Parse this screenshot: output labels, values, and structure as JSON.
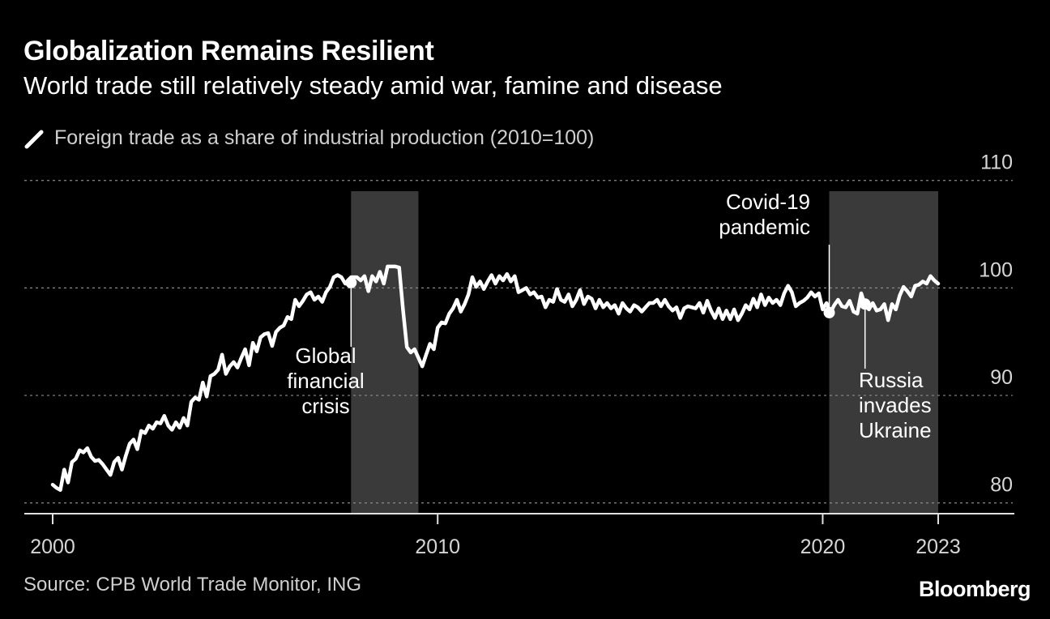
{
  "title": "Globalization Remains Resilient",
  "subtitle": "World trade still relatively steady amid war, famine and disease",
  "source": "Source: CPB World Trade Monitor, ING",
  "brand": "Bloomberg",
  "colors": {
    "background": "#000000",
    "line": "#ffffff",
    "shade": "#3a3a3a",
    "grid": "#8a8a8a",
    "text": "#ffffff"
  },
  "chart_data": {
    "type": "line",
    "legend": [
      {
        "label": "Foreign trade as a share of industrial production (2010=100)"
      }
    ],
    "x_ticks": [
      "2000",
      "2010",
      "2020",
      "2023"
    ],
    "y_ticks": [
      "110",
      "100",
      "90",
      "80"
    ],
    "xlim": [
      2000,
      2023.9
    ],
    "ylim": [
      79,
      109
    ],
    "grid": true,
    "shaded_periods": [
      {
        "start": 2007.75,
        "end": 2009.5
      },
      {
        "start": 2020.17,
        "end": 2023.0
      }
    ],
    "annotations": [
      {
        "lines": [
          "Global",
          "financial",
          "crisis"
        ],
        "x": 2007.75,
        "y": 100.5
      },
      {
        "lines": [
          "Covid-19",
          "pandemic"
        ],
        "x": 2020.17,
        "y": 97.7
      },
      {
        "lines": [
          "Russia",
          "invades",
          "Ukraine"
        ],
        "x": 2021.1,
        "y": 98.5
      }
    ],
    "series": [
      {
        "values": [
          [
            2000.0,
            81.7
          ],
          [
            2000.1,
            81.4
          ],
          [
            2000.2,
            81.2
          ],
          [
            2000.3,
            83.1
          ],
          [
            2000.4,
            81.9
          ],
          [
            2000.5,
            83.8
          ],
          [
            2000.6,
            84.1
          ],
          [
            2000.7,
            84.9
          ],
          [
            2000.8,
            84.7
          ],
          [
            2000.9,
            85.1
          ],
          [
            2001.0,
            84.3
          ],
          [
            2001.1,
            83.9
          ],
          [
            2001.2,
            84.0
          ],
          [
            2001.3,
            83.6
          ],
          [
            2001.4,
            83.1
          ],
          [
            2001.5,
            82.6
          ],
          [
            2001.6,
            83.8
          ],
          [
            2001.7,
            84.2
          ],
          [
            2001.8,
            83.1
          ],
          [
            2001.9,
            84.4
          ],
          [
            2002.0,
            85.5
          ],
          [
            2002.1,
            85.9
          ],
          [
            2002.2,
            85.0
          ],
          [
            2002.3,
            86.7
          ],
          [
            2002.4,
            86.5
          ],
          [
            2002.5,
            87.2
          ],
          [
            2002.6,
            86.9
          ],
          [
            2002.7,
            87.5
          ],
          [
            2002.8,
            87.4
          ],
          [
            2002.9,
            88.1
          ],
          [
            2003.0,
            87.2
          ],
          [
            2003.1,
            86.8
          ],
          [
            2003.2,
            87.5
          ],
          [
            2003.3,
            87.0
          ],
          [
            2003.4,
            87.9
          ],
          [
            2003.5,
            87.2
          ],
          [
            2003.6,
            89.4
          ],
          [
            2003.7,
            89.8
          ],
          [
            2003.8,
            89.6
          ],
          [
            2003.9,
            91.2
          ],
          [
            2004.0,
            89.9
          ],
          [
            2004.1,
            91.8
          ],
          [
            2004.2,
            92.0
          ],
          [
            2004.3,
            92.4
          ],
          [
            2004.4,
            93.8
          ],
          [
            2004.5,
            92.0
          ],
          [
            2004.6,
            92.7
          ],
          [
            2004.7,
            93.1
          ],
          [
            2004.8,
            92.6
          ],
          [
            2004.9,
            93.5
          ],
          [
            2005.0,
            94.3
          ],
          [
            2005.1,
            92.8
          ],
          [
            2005.2,
            94.9
          ],
          [
            2005.3,
            94.1
          ],
          [
            2005.4,
            95.4
          ],
          [
            2005.5,
            95.7
          ],
          [
            2005.6,
            95.8
          ],
          [
            2005.7,
            94.6
          ],
          [
            2005.8,
            95.9
          ],
          [
            2005.9,
            96.3
          ],
          [
            2006.0,
            96.5
          ],
          [
            2006.1,
            97.3
          ],
          [
            2006.2,
            97.1
          ],
          [
            2006.3,
            98.9
          ],
          [
            2006.4,
            98.3
          ],
          [
            2006.5,
            98.8
          ],
          [
            2006.6,
            99.4
          ],
          [
            2006.7,
            99.6
          ],
          [
            2006.8,
            98.9
          ],
          [
            2006.9,
            99.2
          ],
          [
            2007.0,
            98.7
          ],
          [
            2007.1,
            99.6
          ],
          [
            2007.2,
            100.1
          ],
          [
            2007.3,
            101.0
          ],
          [
            2007.4,
            101.2
          ],
          [
            2007.5,
            101.0
          ],
          [
            2007.6,
            100.4
          ],
          [
            2007.7,
            100.8
          ],
          [
            2007.75,
            101.0
          ],
          [
            2007.9,
            101.0
          ],
          [
            2008.0,
            100.7
          ],
          [
            2008.1,
            101.1
          ],
          [
            2008.2,
            99.7
          ],
          [
            2008.3,
            101.1
          ],
          [
            2008.4,
            100.6
          ],
          [
            2008.5,
            101.5
          ],
          [
            2008.6,
            100.4
          ],
          [
            2008.7,
            102.0
          ],
          [
            2008.9,
            102.0
          ],
          [
            2009.0,
            101.9
          ],
          [
            2009.1,
            98.0
          ],
          [
            2009.2,
            94.5
          ],
          [
            2009.3,
            94.0
          ],
          [
            2009.4,
            94.3
          ],
          [
            2009.6,
            92.7
          ],
          [
            2009.7,
            93.8
          ],
          [
            2009.8,
            94.8
          ],
          [
            2009.9,
            94.3
          ],
          [
            2010.0,
            96.3
          ],
          [
            2010.1,
            96.8
          ],
          [
            2010.2,
            96.7
          ],
          [
            2010.3,
            97.6
          ],
          [
            2010.4,
            98.1
          ],
          [
            2010.5,
            98.9
          ],
          [
            2010.6,
            97.8
          ],
          [
            2010.7,
            98.5
          ],
          [
            2010.8,
            99.4
          ],
          [
            2010.9,
            101.0
          ],
          [
            2011.0,
            100.1
          ],
          [
            2011.1,
            100.6
          ],
          [
            2011.2,
            99.9
          ],
          [
            2011.3,
            100.6
          ],
          [
            2011.4,
            101.2
          ],
          [
            2011.5,
            100.4
          ],
          [
            2011.6,
            101.1
          ],
          [
            2011.7,
            100.7
          ],
          [
            2011.8,
            101.3
          ],
          [
            2011.9,
            100.6
          ],
          [
            2012.0,
            101.1
          ],
          [
            2012.1,
            99.6
          ],
          [
            2012.2,
            99.8
          ],
          [
            2012.3,
            100.0
          ],
          [
            2012.4,
            99.4
          ],
          [
            2012.5,
            99.6
          ],
          [
            2012.6,
            99.1
          ],
          [
            2012.7,
            99.2
          ],
          [
            2012.8,
            98.2
          ],
          [
            2012.9,
            98.9
          ],
          [
            2013.0,
            98.7
          ],
          [
            2013.1,
            99.9
          ],
          [
            2013.2,
            98.9
          ],
          [
            2013.3,
            98.7
          ],
          [
            2013.4,
            99.4
          ],
          [
            2013.5,
            98.3
          ],
          [
            2013.6,
            98.9
          ],
          [
            2013.7,
            99.8
          ],
          [
            2013.8,
            98.5
          ],
          [
            2013.9,
            99.2
          ],
          [
            2014.0,
            99.0
          ],
          [
            2014.1,
            98.1
          ],
          [
            2014.2,
            98.9
          ],
          [
            2014.3,
            98.2
          ],
          [
            2014.4,
            98.6
          ],
          [
            2014.5,
            98.1
          ],
          [
            2014.6,
            98.4
          ],
          [
            2014.7,
            97.6
          ],
          [
            2014.8,
            98.6
          ],
          [
            2014.9,
            98.1
          ],
          [
            2015.0,
            97.8
          ],
          [
            2015.1,
            98.4
          ],
          [
            2015.2,
            98.2
          ],
          [
            2015.3,
            97.8
          ],
          [
            2015.4,
            98.2
          ],
          [
            2015.5,
            98.6
          ],
          [
            2015.6,
            98.6
          ],
          [
            2015.7,
            98.9
          ],
          [
            2015.8,
            98.3
          ],
          [
            2015.9,
            98.9
          ],
          [
            2016.0,
            98.3
          ],
          [
            2016.1,
            97.9
          ],
          [
            2016.2,
            98.2
          ],
          [
            2016.3,
            97.2
          ],
          [
            2016.4,
            98.1
          ],
          [
            2016.5,
            98.3
          ],
          [
            2016.6,
            98.2
          ],
          [
            2016.7,
            98.1
          ],
          [
            2016.8,
            98.6
          ],
          [
            2016.9,
            97.7
          ],
          [
            2017.0,
            98.8
          ],
          [
            2017.1,
            97.9
          ],
          [
            2017.2,
            97.2
          ],
          [
            2017.3,
            98.1
          ],
          [
            2017.4,
            97.1
          ],
          [
            2017.5,
            97.9
          ],
          [
            2017.6,
            97.1
          ],
          [
            2017.7,
            98.0
          ],
          [
            2017.8,
            97.0
          ],
          [
            2017.9,
            97.6
          ],
          [
            2018.0,
            98.4
          ],
          [
            2018.1,
            98.0
          ],
          [
            2018.2,
            99.0
          ],
          [
            2018.3,
            98.2
          ],
          [
            2018.4,
            99.4
          ],
          [
            2018.5,
            98.4
          ],
          [
            2018.6,
            99.1
          ],
          [
            2018.7,
            98.6
          ],
          [
            2018.8,
            98.9
          ],
          [
            2018.9,
            98.4
          ],
          [
            2019.0,
            99.5
          ],
          [
            2019.1,
            100.2
          ],
          [
            2019.2,
            99.6
          ],
          [
            2019.3,
            98.3
          ],
          [
            2019.4,
            98.6
          ],
          [
            2019.5,
            98.8
          ],
          [
            2019.6,
            99.1
          ],
          [
            2019.7,
            99.6
          ],
          [
            2019.8,
            99.2
          ],
          [
            2019.9,
            99.5
          ],
          [
            2020.0,
            98.0
          ],
          [
            2020.1,
            98.6
          ],
          [
            2020.2,
            97.7
          ],
          [
            2020.3,
            98.4
          ],
          [
            2020.4,
            98.9
          ],
          [
            2020.5,
            98.3
          ],
          [
            2020.6,
            98.2
          ],
          [
            2020.7,
            98.8
          ],
          [
            2020.8,
            97.8
          ],
          [
            2020.9,
            97.6
          ],
          [
            2021.0,
            99.5
          ],
          [
            2021.1,
            98.4
          ],
          [
            2021.2,
            98.0
          ],
          [
            2021.3,
            98.6
          ],
          [
            2021.4,
            97.9
          ],
          [
            2021.5,
            98.0
          ],
          [
            2021.6,
            98.5
          ],
          [
            2021.7,
            97.0
          ],
          [
            2021.8,
            98.5
          ],
          [
            2021.9,
            98.0
          ],
          [
            2022.0,
            99.3
          ],
          [
            2022.1,
            100.1
          ],
          [
            2022.2,
            99.7
          ],
          [
            2022.3,
            99.2
          ],
          [
            2022.4,
            100.2
          ],
          [
            2022.5,
            100.3
          ],
          [
            2022.6,
            100.6
          ],
          [
            2022.7,
            100.4
          ],
          [
            2022.8,
            101.1
          ],
          [
            2022.9,
            100.7
          ],
          [
            2023.0,
            100.4
          ]
        ]
      }
    ]
  }
}
